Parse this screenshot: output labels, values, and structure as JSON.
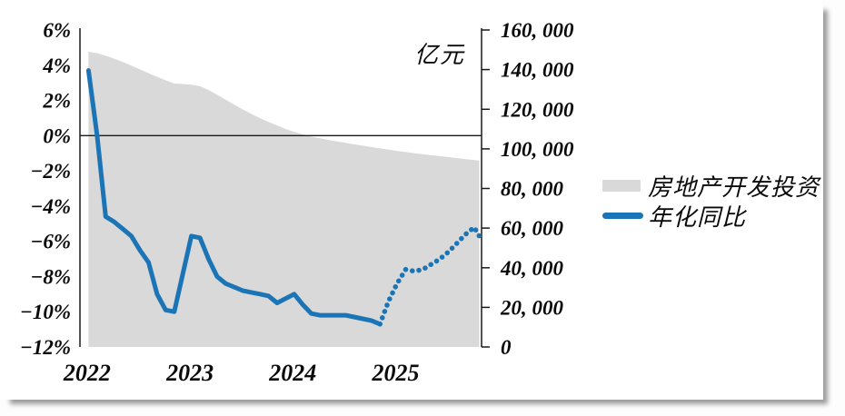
{
  "chart_data": {
    "type": "area+line combo, dual axis",
    "right_axis_title": "亿元",
    "colors": {
      "area": "#d9d9d9",
      "line": "#1b74b5",
      "axis": "#1a1a1a",
      "text": "#0a0a0a"
    },
    "legend": [
      {
        "label": "房地产开发投资",
        "type": "area",
        "color": "#d9d9d9"
      },
      {
        "label": "年化同比",
        "type": "line",
        "color": "#1b74b5"
      }
    ],
    "left_axis": {
      "unit": "%",
      "max": 6,
      "min": -12,
      "step": -2,
      "tick_labels": [
        "6%",
        "4%",
        "2%",
        "0%",
        "−2%",
        "−4%",
        "−6%",
        "−8%",
        "−10%",
        "−12%"
      ],
      "tick_values": [
        6,
        4,
        2,
        0,
        -2,
        -4,
        -6,
        -8,
        -10,
        -12
      ]
    },
    "right_axis": {
      "unit": "亿元",
      "max": 160000,
      "min": 0,
      "step": -20000,
      "tick_labels": [
        "160, 000",
        "140, 000",
        "120, 000",
        "100, 000",
        "80, 000",
        "60, 000",
        "40, 000",
        "20, 000",
        "0"
      ],
      "tick_values": [
        160000,
        140000,
        120000,
        100000,
        80000,
        60000,
        40000,
        20000,
        0
      ]
    },
    "x_axis": {
      "tick_labels": [
        "2022",
        "2023",
        "2024",
        "2025"
      ],
      "tick_positions": [
        2022.07,
        2023.07,
        2024.07,
        2025.07
      ],
      "range": [
        2022.0,
        2025.95
      ]
    },
    "series": [
      {
        "name": "房地产开发投资",
        "axis": "right",
        "type": "area",
        "unit": "亿元",
        "points": [
          [
            2022.083,
            149000
          ],
          [
            2022.167,
            148300
          ],
          [
            2022.25,
            147000
          ],
          [
            2022.333,
            145500
          ],
          [
            2022.417,
            143800
          ],
          [
            2022.5,
            142000
          ],
          [
            2022.583,
            140100
          ],
          [
            2022.667,
            138200
          ],
          [
            2022.75,
            136400
          ],
          [
            2022.833,
            134600
          ],
          [
            2022.917,
            133000
          ],
          [
            2023.0,
            132700
          ],
          [
            2023.083,
            132400
          ],
          [
            2023.167,
            131600
          ],
          [
            2023.25,
            129700
          ],
          [
            2023.333,
            127300
          ],
          [
            2023.417,
            124800
          ],
          [
            2023.5,
            122300
          ],
          [
            2023.583,
            119900
          ],
          [
            2023.667,
            117600
          ],
          [
            2023.75,
            115500
          ],
          [
            2023.833,
            113600
          ],
          [
            2023.917,
            111800
          ],
          [
            2024.0,
            110000
          ],
          [
            2024.083,
            108600
          ],
          [
            2024.167,
            107300
          ],
          [
            2024.25,
            106200
          ],
          [
            2024.333,
            105300
          ],
          [
            2024.417,
            104500
          ],
          [
            2024.5,
            103700
          ],
          [
            2024.583,
            103000
          ],
          [
            2024.667,
            102300
          ],
          [
            2024.75,
            101600
          ],
          [
            2024.833,
            100900
          ],
          [
            2024.917,
            100200
          ],
          [
            2025.0,
            99600
          ],
          [
            2025.083,
            99000
          ],
          [
            2025.167,
            98400
          ],
          [
            2025.25,
            97800
          ],
          [
            2025.333,
            97300
          ],
          [
            2025.417,
            96800
          ],
          [
            2025.5,
            96300
          ],
          [
            2025.583,
            95800
          ],
          [
            2025.667,
            95300
          ],
          [
            2025.75,
            94800
          ],
          [
            2025.833,
            94400
          ],
          [
            2025.917,
            94000
          ]
        ]
      },
      {
        "name": "年化同比",
        "axis": "left",
        "type": "line",
        "style": "solid",
        "unit": "%",
        "points": [
          [
            2022.083,
            3.7
          ],
          [
            2022.167,
            0.0
          ],
          [
            2022.25,
            -4.6
          ],
          [
            2022.333,
            -4.9
          ],
          [
            2022.417,
            -5.3
          ],
          [
            2022.5,
            -5.7
          ],
          [
            2022.583,
            -6.5
          ],
          [
            2022.667,
            -7.2
          ],
          [
            2022.75,
            -9.0
          ],
          [
            2022.833,
            -9.9
          ],
          [
            2022.917,
            -10.0
          ],
          [
            2023.083,
            -5.7
          ],
          [
            2023.167,
            -5.8
          ],
          [
            2023.25,
            -7.0
          ],
          [
            2023.333,
            -8.0
          ],
          [
            2023.417,
            -8.4
          ],
          [
            2023.5,
            -8.6
          ],
          [
            2023.583,
            -8.8
          ],
          [
            2023.667,
            -8.9
          ],
          [
            2023.75,
            -9.0
          ],
          [
            2023.833,
            -9.1
          ],
          [
            2023.917,
            -9.5
          ],
          [
            2024.083,
            -9.0
          ],
          [
            2024.167,
            -9.6
          ],
          [
            2024.25,
            -10.1
          ],
          [
            2024.333,
            -10.2
          ],
          [
            2024.417,
            -10.2
          ],
          [
            2024.5,
            -10.2
          ],
          [
            2024.583,
            -10.2
          ],
          [
            2024.667,
            -10.3
          ],
          [
            2024.75,
            -10.4
          ],
          [
            2024.833,
            -10.5
          ],
          [
            2024.917,
            -10.7
          ]
        ]
      },
      {
        "name": "年化同比",
        "axis": "left",
        "type": "line",
        "style": "dotted",
        "unit": "%",
        "points": [
          [
            2024.917,
            -10.7
          ],
          [
            2025.0,
            -9.4
          ],
          [
            2025.083,
            -8.4
          ],
          [
            2025.167,
            -7.6
          ],
          [
            2025.25,
            -7.7
          ],
          [
            2025.333,
            -7.6
          ],
          [
            2025.417,
            -7.3
          ],
          [
            2025.5,
            -7.0
          ],
          [
            2025.583,
            -6.6
          ],
          [
            2025.667,
            -6.1
          ],
          [
            2025.75,
            -5.6
          ],
          [
            2025.833,
            -5.2
          ],
          [
            2025.917,
            -5.7
          ]
        ]
      }
    ]
  }
}
